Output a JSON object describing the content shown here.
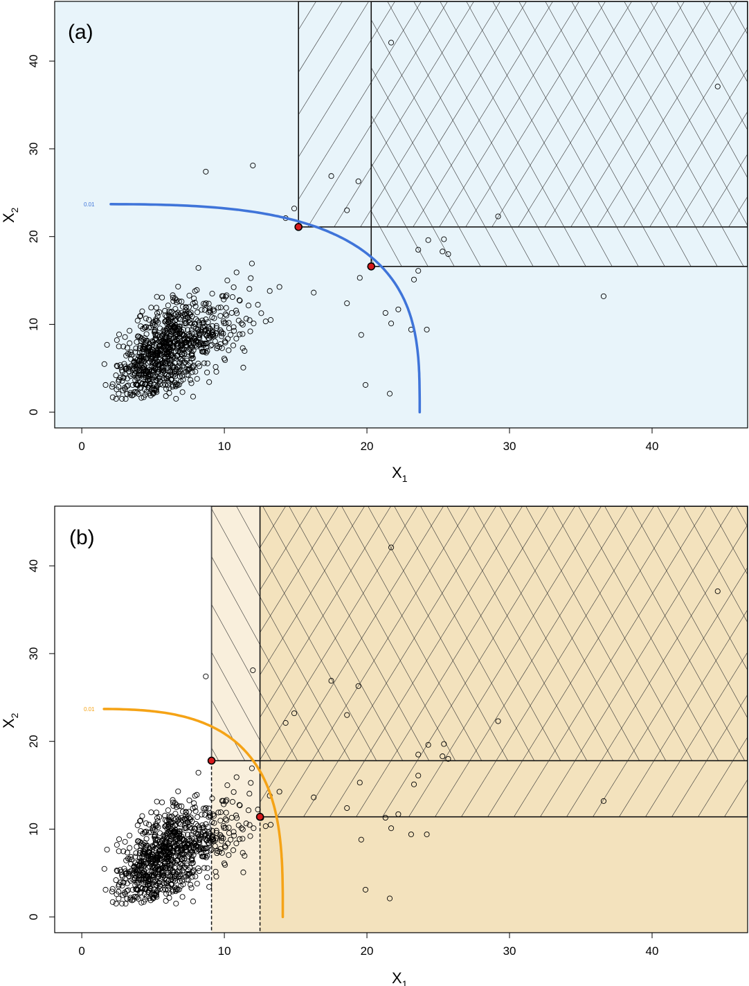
{
  "chart_data": [
    {
      "type": "scatter",
      "panel_label": "(a)",
      "xlabel": "X",
      "xlabel_sub": "1",
      "ylabel": "X",
      "ylabel_sub": "2",
      "xlim": [
        -1.9,
        46.7
      ],
      "ylim": [
        -1.8,
        46.8
      ],
      "xticks": [
        0,
        10,
        20,
        30,
        40
      ],
      "yticks": [
        0,
        10,
        20,
        30,
        40
      ],
      "background_color": "#e8f4fa",
      "curve": {
        "label": "0.01",
        "color": "#3f74d9",
        "x_end": 23.7,
        "y_end": 23.7,
        "x_start": 1.4,
        "power": 3.2
      },
      "marked_points": [
        [
          15.2,
          21.1
        ],
        [
          20.3,
          16.6
        ]
      ],
      "marked_point_color": "#d7191c",
      "regions": [
        {
          "x": 15.2,
          "y": 21.1,
          "hatch": "/",
          "dashed_from_axis": false
        },
        {
          "x": 20.3,
          "y": 16.6,
          "hatch": "\\",
          "dashed_from_axis": false
        }
      ],
      "region_fill": "none",
      "points_outer": [
        [
          21.7,
          42.1
        ],
        [
          44.6,
          37.1
        ],
        [
          8.7,
          27.4
        ],
        [
          12.0,
          28.1
        ],
        [
          17.5,
          26.9
        ],
        [
          19.4,
          26.3
        ],
        [
          14.3,
          22.1
        ],
        [
          14.9,
          23.2
        ],
        [
          18.6,
          23.0
        ],
        [
          29.2,
          22.3
        ],
        [
          24.3,
          19.6
        ],
        [
          25.4,
          19.7
        ],
        [
          25.3,
          18.3
        ],
        [
          25.7,
          18.0
        ],
        [
          23.6,
          18.5
        ],
        [
          36.6,
          13.2
        ],
        [
          23.6,
          16.1
        ],
        [
          23.3,
          15.1
        ],
        [
          22.2,
          11.7
        ],
        [
          21.7,
          10.1
        ],
        [
          23.1,
          9.4
        ],
        [
          24.2,
          9.4
        ],
        [
          19.9,
          3.1
        ],
        [
          21.6,
          2.1
        ],
        [
          21.3,
          11.3
        ],
        [
          19.5,
          15.3
        ],
        [
          18.6,
          12.4
        ],
        [
          19.6,
          8.8
        ]
      ]
    },
    {
      "type": "scatter",
      "panel_label": "(b)",
      "xlabel": "X",
      "xlabel_sub": "1",
      "ylabel": "X",
      "ylabel_sub": "2",
      "xlim": [
        -1.9,
        46.7
      ],
      "ylim": [
        -1.8,
        46.8
      ],
      "xticks": [
        0,
        10,
        20,
        30,
        40
      ],
      "yticks": [
        0,
        10,
        20,
        30,
        40
      ],
      "background_color": "#ffffff",
      "curve": {
        "label": "0.01",
        "color": "#f5a316",
        "x_end": 14.1,
        "y_end": 23.7,
        "x_start": 1.4,
        "power": 3.2
      },
      "marked_points": [
        [
          9.1,
          17.8
        ],
        [
          12.5,
          11.4
        ]
      ],
      "marked_point_color": "#d7191c",
      "regions": [
        {
          "x": 9.1,
          "y": 17.8,
          "hatch": "\\",
          "dashed_from_axis": true
        },
        {
          "x": 12.5,
          "y": 11.4,
          "hatch": "/",
          "dashed_from_axis": true
        }
      ],
      "region_fill": "#f3e2bd",
      "region_fill_light": "#f9efdc",
      "points_outer": [
        [
          21.7,
          42.1
        ],
        [
          44.6,
          37.1
        ],
        [
          8.7,
          27.4
        ],
        [
          12.0,
          28.1
        ],
        [
          17.5,
          26.9
        ],
        [
          19.4,
          26.3
        ],
        [
          14.3,
          22.1
        ],
        [
          14.9,
          23.2
        ],
        [
          18.6,
          23.0
        ],
        [
          29.2,
          22.3
        ],
        [
          24.3,
          19.6
        ],
        [
          25.4,
          19.7
        ],
        [
          25.3,
          18.3
        ],
        [
          25.7,
          18.0
        ],
        [
          23.6,
          18.5
        ],
        [
          36.6,
          13.2
        ],
        [
          23.6,
          16.1
        ],
        [
          23.3,
          15.1
        ],
        [
          22.2,
          11.7
        ],
        [
          21.7,
          10.1
        ],
        [
          23.1,
          9.4
        ],
        [
          24.2,
          9.4
        ],
        [
          19.9,
          3.1
        ],
        [
          21.6,
          2.1
        ],
        [
          21.3,
          11.3
        ],
        [
          19.5,
          15.3
        ],
        [
          18.6,
          12.4
        ],
        [
          19.6,
          8.8
        ]
      ]
    }
  ],
  "cluster": {
    "count": 900,
    "center": [
      6.0,
      7.0
    ],
    "seed": 7
  }
}
